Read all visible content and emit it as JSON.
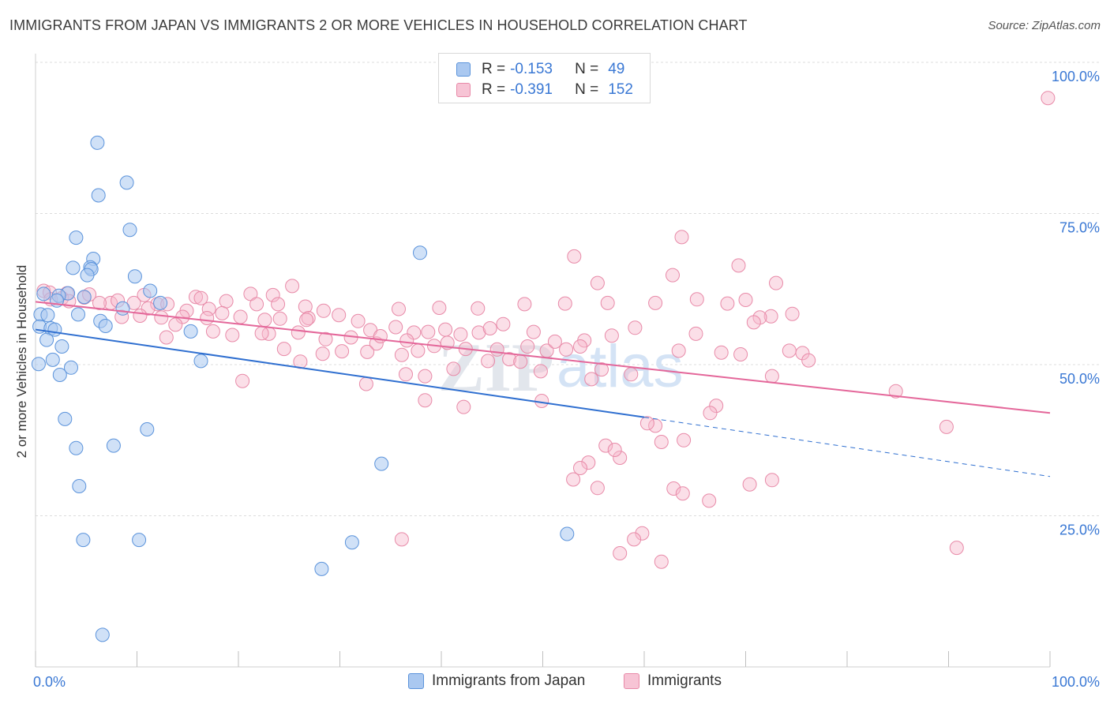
{
  "title": "IMMIGRANTS FROM JAPAN VS IMMIGRANTS 2 OR MORE VEHICLES IN HOUSEHOLD CORRELATION CHART",
  "source": "Source: ZipAtlas.com",
  "watermark": {
    "zip": "ZIP",
    "atlas": "atlas"
  },
  "legend": {
    "japan": {
      "r_label": "R =",
      "r_value": "-0.153",
      "n_label": "N =",
      "n_value": "49"
    },
    "immigrants": {
      "r_label": "R =",
      "r_value": "-0.391",
      "n_label": "N =",
      "n_value": "152"
    }
  },
  "colors": {
    "japan_fill": "#aac8f0",
    "japan_stroke": "#5b93db",
    "japan_line": "#2f6fd0",
    "imm_fill": "#f7b8cc",
    "imm_stroke": "#e88aa8",
    "imm_line": "#e4679a",
    "axis_text": "#3a78d4"
  },
  "chart_data": {
    "type": "scatter",
    "title": "IMMIGRANTS FROM JAPAN VS IMMIGRANTS 2 OR MORE VEHICLES IN HOUSEHOLD CORRELATION CHART",
    "xlabel": "",
    "ylabel": "2 or more Vehicles in Household",
    "xlim": [
      0,
      100
    ],
    "ylim": [
      0,
      103
    ],
    "x_tick_labels": [
      "0.0%",
      "100.0%"
    ],
    "y_ticks": [
      25,
      50,
      75,
      100
    ],
    "y_tick_labels": [
      "25.0%",
      "50.0%",
      "75.0%",
      "100.0%"
    ],
    "grid": true,
    "legend_position": "top-center",
    "series": [
      {
        "name": "Immigrants from Japan",
        "r": -0.153,
        "n": 49,
        "trend": {
          "x0": 0,
          "y0": 55.8,
          "x_solid_end": 60,
          "y_solid_end": 41.3,
          "x1": 100,
          "y1": 31.5
        },
        "points": [
          [
            43.1,
            100.2
          ],
          [
            6.1,
            86.7
          ],
          [
            9.0,
            80.1
          ],
          [
            6.2,
            78.0
          ],
          [
            9.3,
            72.3
          ],
          [
            4.0,
            71.0
          ],
          [
            37.9,
            68.5
          ],
          [
            5.7,
            67.5
          ],
          [
            5.4,
            66.1
          ],
          [
            3.7,
            66.0
          ],
          [
            5.5,
            65.8
          ],
          [
            5.1,
            64.8
          ],
          [
            9.8,
            64.6
          ],
          [
            11.3,
            62.2
          ],
          [
            0.8,
            61.7
          ],
          [
            3.2,
            61.8
          ],
          [
            2.3,
            61.4
          ],
          [
            4.8,
            61.2
          ],
          [
            2.1,
            60.6
          ],
          [
            12.3,
            60.2
          ],
          [
            8.6,
            59.3
          ],
          [
            0.5,
            58.3
          ],
          [
            1.2,
            58.2
          ],
          [
            4.2,
            58.3
          ],
          [
            6.4,
            57.2
          ],
          [
            0.4,
            56.3
          ],
          [
            1.5,
            56.0
          ],
          [
            1.9,
            55.8
          ],
          [
            6.9,
            56.4
          ],
          [
            15.3,
            55.5
          ],
          [
            1.1,
            54.1
          ],
          [
            2.6,
            53.0
          ],
          [
            1.7,
            50.8
          ],
          [
            0.3,
            50.1
          ],
          [
            16.3,
            50.6
          ],
          [
            3.5,
            49.5
          ],
          [
            2.4,
            48.3
          ],
          [
            2.9,
            41.0
          ],
          [
            11.0,
            39.3
          ],
          [
            7.7,
            36.6
          ],
          [
            4.0,
            36.2
          ],
          [
            34.1,
            33.6
          ],
          [
            4.3,
            29.9
          ],
          [
            4.7,
            21.0
          ],
          [
            10.2,
            21.0
          ],
          [
            52.4,
            22.0
          ],
          [
            31.2,
            20.6
          ],
          [
            28.2,
            16.2
          ],
          [
            6.6,
            5.3
          ]
        ]
      },
      {
        "name": "Immigrants",
        "r": -0.391,
        "n": 152,
        "trend": {
          "x0": 0,
          "y0": 60.4,
          "x1": 100,
          "y1": 42.0
        },
        "points": [
          [
            99.8,
            94.1
          ],
          [
            63.7,
            71.1
          ],
          [
            53.1,
            67.9
          ],
          [
            69.3,
            66.4
          ],
          [
            62.8,
            64.8
          ],
          [
            73.0,
            63.5
          ],
          [
            55.4,
            63.5
          ],
          [
            25.3,
            63.0
          ],
          [
            0.8,
            62.2
          ],
          [
            1.4,
            61.9
          ],
          [
            3.1,
            61.8
          ],
          [
            10.7,
            61.5
          ],
          [
            15.8,
            61.2
          ],
          [
            21.2,
            61.7
          ],
          [
            23.4,
            61.5
          ],
          [
            2.6,
            61.0
          ],
          [
            4.8,
            61.1
          ],
          [
            5.3,
            61.6
          ],
          [
            7.4,
            60.2
          ],
          [
            8.1,
            60.6
          ],
          [
            9.7,
            60.2
          ],
          [
            12.0,
            60.0
          ],
          [
            16.3,
            61.0
          ],
          [
            18.8,
            60.5
          ],
          [
            21.8,
            60.0
          ],
          [
            23.9,
            60.0
          ],
          [
            26.6,
            59.6
          ],
          [
            28.4,
            58.9
          ],
          [
            17.1,
            59.2
          ],
          [
            14.9,
            58.9
          ],
          [
            6.3,
            60.2
          ],
          [
            3.3,
            60.5
          ],
          [
            1.5,
            60.8
          ],
          [
            13.0,
            60.0
          ],
          [
            11.1,
            59.3
          ],
          [
            10.3,
            58.1
          ],
          [
            8.5,
            57.9
          ],
          [
            12.4,
            57.8
          ],
          [
            14.5,
            57.9
          ],
          [
            16.9,
            57.7
          ],
          [
            18.4,
            58.5
          ],
          [
            20.2,
            57.9
          ],
          [
            22.6,
            57.4
          ],
          [
            24.1,
            57.6
          ],
          [
            26.9,
            57.7
          ],
          [
            29.9,
            58.2
          ],
          [
            31.8,
            57.2
          ],
          [
            33.0,
            55.7
          ],
          [
            35.5,
            56.2
          ],
          [
            37.3,
            55.3
          ],
          [
            38.7,
            55.4
          ],
          [
            40.4,
            55.8
          ],
          [
            41.9,
            55.0
          ],
          [
            43.7,
            55.3
          ],
          [
            44.8,
            56.0
          ],
          [
            31.1,
            54.5
          ],
          [
            28.6,
            54.2
          ],
          [
            25.9,
            55.3
          ],
          [
            23.0,
            55.1
          ],
          [
            19.4,
            54.9
          ],
          [
            17.5,
            55.5
          ],
          [
            13.8,
            56.6
          ],
          [
            12.9,
            54.5
          ],
          [
            33.6,
            53.5
          ],
          [
            36.6,
            54.0
          ],
          [
            39.3,
            53.1
          ],
          [
            42.4,
            52.6
          ],
          [
            45.5,
            52.5
          ],
          [
            48.5,
            53.0
          ],
          [
            50.4,
            52.3
          ],
          [
            52.3,
            52.5
          ],
          [
            49.8,
            48.9
          ],
          [
            46.7,
            50.9
          ],
          [
            44.6,
            50.6
          ],
          [
            47.8,
            50.5
          ],
          [
            41.2,
            49.3
          ],
          [
            38.4,
            48.1
          ],
          [
            36.1,
            51.6
          ],
          [
            34.0,
            54.7
          ],
          [
            32.7,
            52.1
          ],
          [
            30.2,
            52.2
          ],
          [
            28.3,
            51.8
          ],
          [
            26.1,
            50.5
          ],
          [
            24.5,
            52.6
          ],
          [
            46.1,
            56.7
          ],
          [
            49.1,
            55.4
          ],
          [
            51.2,
            53.8
          ],
          [
            63.4,
            52.3
          ],
          [
            67.6,
            52.0
          ],
          [
            69.5,
            51.7
          ],
          [
            74.3,
            52.3
          ],
          [
            75.6,
            51.9
          ],
          [
            76.2,
            50.7
          ],
          [
            84.8,
            45.6
          ],
          [
            72.6,
            48.1
          ],
          [
            67.1,
            43.2
          ],
          [
            54.8,
            47.6
          ],
          [
            58.7,
            48.4
          ],
          [
            49.9,
            44.0
          ],
          [
            42.2,
            43.0
          ],
          [
            38.4,
            44.1
          ],
          [
            36.5,
            48.4
          ],
          [
            32.6,
            46.8
          ],
          [
            20.4,
            47.3
          ],
          [
            22.3,
            55.2
          ],
          [
            26.7,
            57.4
          ],
          [
            35.8,
            59.2
          ],
          [
            39.8,
            59.4
          ],
          [
            43.6,
            59.3
          ],
          [
            48.2,
            60.0
          ],
          [
            52.2,
            60.1
          ],
          [
            56.4,
            60.2
          ],
          [
            61.1,
            60.2
          ],
          [
            65.2,
            60.8
          ],
          [
            68.2,
            60.1
          ],
          [
            70.0,
            60.7
          ],
          [
            72.5,
            58.0
          ],
          [
            71.4,
            57.8
          ],
          [
            74.6,
            58.4
          ],
          [
            70.8,
            57.0
          ],
          [
            65.1,
            55.1
          ],
          [
            59.1,
            56.1
          ],
          [
            56.8,
            54.8
          ],
          [
            54.1,
            54.0
          ],
          [
            53.7,
            53.0
          ],
          [
            61.1,
            39.9
          ],
          [
            66.5,
            42.0
          ],
          [
            63.9,
            37.5
          ],
          [
            61.7,
            37.2
          ],
          [
            60.3,
            40.3
          ],
          [
            57.6,
            34.6
          ],
          [
            56.2,
            36.6
          ],
          [
            57.1,
            35.9
          ],
          [
            54.5,
            33.8
          ],
          [
            53.7,
            32.9
          ],
          [
            53.0,
            31.0
          ],
          [
            55.4,
            29.6
          ],
          [
            62.9,
            29.5
          ],
          [
            63.8,
            28.7
          ],
          [
            66.4,
            27.5
          ],
          [
            72.6,
            30.9
          ],
          [
            70.4,
            30.2
          ],
          [
            59.8,
            22.1
          ],
          [
            59.0,
            21.1
          ],
          [
            57.6,
            18.8
          ],
          [
            61.7,
            17.4
          ],
          [
            36.1,
            21.1
          ],
          [
            89.8,
            39.7
          ],
          [
            90.8,
            19.7
          ],
          [
            37.7,
            52.3
          ],
          [
            40.6,
            53.6
          ],
          [
            55.8,
            49.2
          ]
        ]
      }
    ]
  }
}
